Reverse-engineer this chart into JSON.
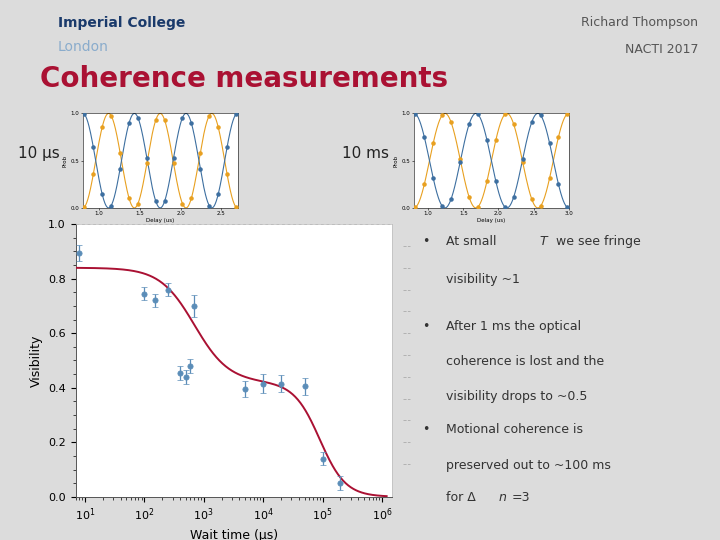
{
  "title": "Coherence measurements",
  "header_left_line1": "Imperial College",
  "header_left_line2": "London",
  "header_right_line1": "Richard Thompson",
  "header_right_line2": "NACTI 2017",
  "bg_color": "#dcdcdc",
  "header_bg": "#dcdcdc",
  "title_color": "#aa1133",
  "ic_blue1": "#1a3a6b",
  "ic_blue2": "#8aaccc",
  "right_text_color": "#555555",
  "separator_color": "#7a9abf",
  "label_10us": "10 μs",
  "label_10ms": "10 ms",
  "fringe_orange": "#e8a020",
  "fringe_blue": "#3d6fa0",
  "scatter_x": [
    8,
    100,
    150,
    250,
    400,
    500,
    600,
    700,
    5000,
    10000,
    20000,
    50000,
    100000,
    200000
  ],
  "scatter_y": [
    0.895,
    0.745,
    0.72,
    0.76,
    0.455,
    0.44,
    0.48,
    0.7,
    0.395,
    0.415,
    0.415,
    0.405,
    0.14,
    0.05
  ],
  "scatter_yerr": [
    0.03,
    0.025,
    0.025,
    0.025,
    0.025,
    0.025,
    0.025,
    0.04,
    0.03,
    0.035,
    0.03,
    0.03,
    0.025,
    0.025
  ],
  "scatter_color": "#5b8db8",
  "fit_color": "#aa1133",
  "xlabel": "Wait time (μs)",
  "ylabel": "Visibility"
}
